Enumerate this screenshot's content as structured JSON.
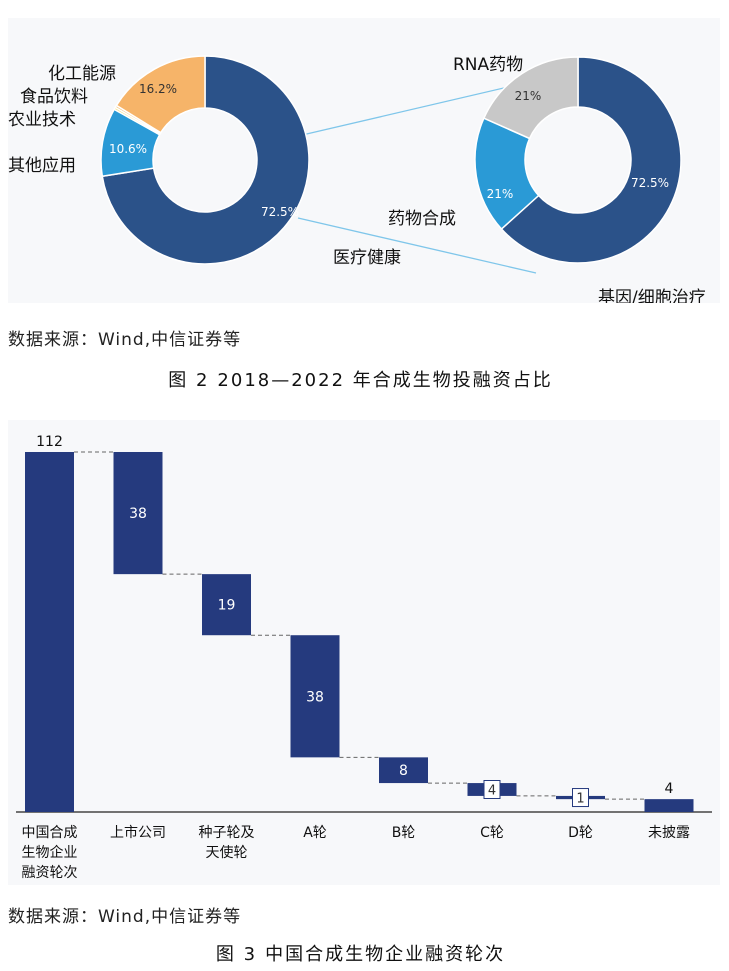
{
  "figure2": {
    "caption_num": "图 2",
    "caption_text": "2018—2022 年合成生物投融资占比",
    "source": "数据来源：Wind,中信证券等",
    "chart_data": [
      {
        "type": "pie",
        "style": "donut",
        "segments": [
          {
            "label": "医疗健康",
            "value": 72.5,
            "value_label": "72.5%",
            "color": "#2b5289"
          },
          {
            "label": "其他应用",
            "value": 10.6,
            "value_label": "10.6%",
            "color": "#2a9ad6"
          },
          {
            "label": "农业技术",
            "value": 0.35,
            "value_label": "",
            "color": "#f5e17a"
          },
          {
            "label": "食品饮料",
            "value": 0.35,
            "value_label": "",
            "color": "#f7c782"
          },
          {
            "label": "化工能源",
            "value": 16.2,
            "value_label": "16.2%",
            "color": "#f6b469"
          }
        ]
      },
      {
        "type": "pie",
        "style": "donut",
        "segments": [
          {
            "label": "基因/细胞治疗",
            "value": 72.5,
            "value_label": "72.5%",
            "color": "#2b5289"
          },
          {
            "label": "药物合成",
            "value": 21,
            "value_label": "21%",
            "color": "#2a9ad6"
          },
          {
            "label": "RNA药物",
            "value": 21,
            "value_label": "21%",
            "color": "#c8c8c8"
          }
        ]
      }
    ]
  },
  "figure3": {
    "caption_num": "图 3",
    "caption_text": "中国合成生物企业融资轮次",
    "source": "数据来源：Wind,中信证券等",
    "chart_data": {
      "type": "bar",
      "style": "waterfall",
      "categories": [
        [
          "中国合成",
          "生物企业",
          "融资轮次"
        ],
        [
          "上市公司"
        ],
        [
          "种子轮及",
          "天使轮"
        ],
        [
          "A轮"
        ],
        [
          "B轮"
        ],
        [
          "C轮"
        ],
        [
          "D轮"
        ],
        [
          "未披露"
        ]
      ],
      "values": [
        112,
        38,
        19,
        38,
        8,
        4,
        1,
        4
      ],
      "value_labels": [
        "112",
        "38",
        "19",
        "38",
        "8",
        "4",
        "1",
        "4"
      ],
      "ylim": [
        0,
        112
      ],
      "color": "#253a7e"
    }
  }
}
